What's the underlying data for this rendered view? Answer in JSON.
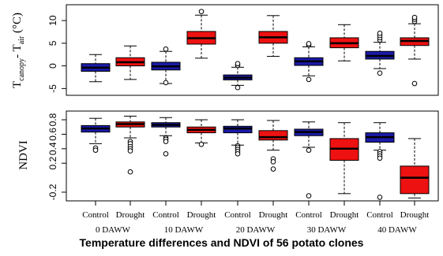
{
  "figure_title": "Temperature differences and NDVI of 56 potato clones",
  "colors": {
    "control": "#1a1aa8",
    "drought": "#ee1111"
  },
  "chart_data": [
    {
      "type": "box",
      "ylabel": "Tcanopy- Tair (°C)",
      "ylabel_parts": {
        "main": "T",
        "sub1": "canopy",
        "mid": "- T",
        "sub2": "air",
        "unit": " (°C)"
      },
      "ylim": [
        -6.5,
        13.5
      ],
      "yticks": [
        -5,
        0,
        5,
        10
      ],
      "ytick_labels": [
        "-5",
        "0",
        "5",
        "10"
      ],
      "boxes": [
        {
          "cat": "Control",
          "daaw": "0 DAWW",
          "whisker": [
            -3.5,
            2.5
          ],
          "q1": -1.2,
          "median": -0.4,
          "q3": 0.5,
          "outliers": []
        },
        {
          "cat": "Drought",
          "daaw": "0 DAWW",
          "whisker": [
            -3.0,
            4.4
          ],
          "q1": 0.0,
          "median": 0.8,
          "q3": 1.8,
          "outliers": []
        },
        {
          "cat": "Control",
          "daaw": "10 DAWW",
          "whisker": [
            -3.9,
            3.2
          ],
          "q1": -0.9,
          "median": -0.1,
          "q3": 0.8,
          "outliers": [
            3.7,
            -3.7
          ]
        },
        {
          "cat": "Drought",
          "daaw": "10 DAWW",
          "whisker": [
            1.7,
            11.2
          ],
          "q1": 4.8,
          "median": 6.1,
          "q3": 7.6,
          "outliers": [
            12.0
          ]
        },
        {
          "cat": "Control",
          "daaw": "20 DAWW",
          "whisker": [
            -4.3,
            -0.3
          ],
          "q1": -3.1,
          "median": -2.6,
          "q3": -2.0,
          "outliers": [
            0.1,
            0.5,
            -4.8
          ]
        },
        {
          "cat": "Drought",
          "daaw": "20 DAWW",
          "whisker": [
            2.1,
            11.1
          ],
          "q1": 5.0,
          "median": 6.3,
          "q3": 7.6,
          "outliers": []
        },
        {
          "cat": "Control",
          "daaw": "30 DAWW",
          "whisker": [
            -2.2,
            4.2
          ],
          "q1": 0.1,
          "median": 1.0,
          "q3": 1.8,
          "outliers": [
            4.6,
            4.9,
            -3.0
          ]
        },
        {
          "cat": "Drought",
          "daaw": "30 DAWW",
          "whisker": [
            1.1,
            9.1
          ],
          "q1": 4.0,
          "median": 5.0,
          "q3": 6.2,
          "outliers": []
        },
        {
          "cat": "Control",
          "daaw": "40 DAWW",
          "whisker": [
            -0.6,
            5.2
          ],
          "q1": 1.5,
          "median": 2.2,
          "q3": 3.2,
          "outliers": [
            5.7,
            6.2,
            6.7,
            7.2,
            -1.6
          ]
        },
        {
          "cat": "Drought",
          "daaw": "40 DAWW",
          "whisker": [
            1.5,
            9.3
          ],
          "q1": 4.5,
          "median": 5.5,
          "q3": 6.2,
          "outliers": [
            9.8,
            10.3,
            10.7,
            -3.9
          ]
        }
      ]
    },
    {
      "type": "box",
      "ylabel": "NDVI",
      "ylim": [
        -0.32,
        0.92
      ],
      "yticks": [
        -0.2,
        0.2,
        0.4,
        0.6,
        0.8
      ],
      "ytick_labels": [
        "-0.2",
        "0.2",
        "0.4",
        "0.6",
        "0.8"
      ],
      "boxes": [
        {
          "cat": "Control",
          "daaw": "0 DAWW",
          "whisker": [
            0.47,
            0.82
          ],
          "q1": 0.63,
          "median": 0.68,
          "q3": 0.72,
          "outliers": [
            0.41,
            0.38
          ]
        },
        {
          "cat": "Drought",
          "daaw": "0 DAWW",
          "whisker": [
            0.55,
            0.85
          ],
          "q1": 0.7,
          "median": 0.74,
          "q3": 0.77,
          "outliers": [
            0.5,
            0.47,
            0.43,
            0.4,
            0.37,
            0.08
          ]
        },
        {
          "cat": "Control",
          "daaw": "10 DAWW",
          "whisker": [
            0.58,
            0.83
          ],
          "q1": 0.7,
          "median": 0.73,
          "q3": 0.76,
          "outliers": [
            0.55,
            0.53,
            0.5,
            0.33
          ]
        },
        {
          "cat": "Drought",
          "daaw": "10 DAWW",
          "whisker": [
            0.48,
            0.8
          ],
          "q1": 0.62,
          "median": 0.66,
          "q3": 0.7,
          "outliers": [
            0.46
          ]
        },
        {
          "cat": "Control",
          "daaw": "20 DAWW",
          "whisker": [
            0.45,
            0.8
          ],
          "q1": 0.62,
          "median": 0.68,
          "q3": 0.71,
          "outliers": [
            0.44,
            0.42,
            0.39,
            0.36,
            0.33
          ]
        },
        {
          "cat": "Drought",
          "daaw": "20 DAWW",
          "whisker": [
            0.38,
            0.79
          ],
          "q1": 0.52,
          "median": 0.56,
          "q3": 0.65,
          "outliers": [
            0.26,
            0.22,
            0.12
          ]
        },
        {
          "cat": "Control",
          "daaw": "30 DAWW",
          "whisker": [
            0.42,
            0.77
          ],
          "q1": 0.58,
          "median": 0.63,
          "q3": 0.67,
          "outliers": [
            0.38,
            -0.25
          ]
        },
        {
          "cat": "Drought",
          "daaw": "30 DAWW",
          "whisker": [
            -0.22,
            0.76
          ],
          "q1": 0.24,
          "median": 0.4,
          "q3": 0.54,
          "outliers": []
        },
        {
          "cat": "Control",
          "daaw": "40 DAWW",
          "whisker": [
            0.38,
            0.76
          ],
          "q1": 0.49,
          "median": 0.56,
          "q3": 0.62,
          "outliers": [
            0.36,
            0.33,
            0.3,
            0.27,
            -0.27
          ]
        },
        {
          "cat": "Drought",
          "daaw": "40 DAWW",
          "whisker": [
            -0.28,
            0.54
          ],
          "q1": -0.22,
          "median": 0.0,
          "q3": 0.16,
          "outliers": []
        }
      ]
    }
  ],
  "x_categories": [
    "Control",
    "Drought",
    "Control",
    "Drought",
    "Control",
    "Drought",
    "Control",
    "Drought",
    "Control",
    "Drought"
  ],
  "x_groups": [
    "0 DAWW",
    "10 DAWW",
    "20 DAWW",
    "30 DAWW",
    "40 DAWW"
  ]
}
